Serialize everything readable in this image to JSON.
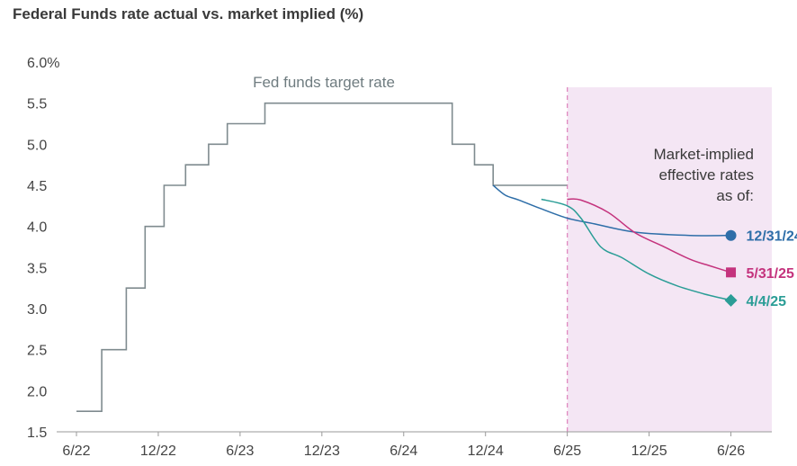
{
  "chart_data": {
    "type": "line",
    "title": "Federal Funds rate actual vs. market implied (%)",
    "xlabel": "",
    "ylabel": "",
    "ylim": [
      1.5,
      6.0
    ],
    "xlim": [
      "2022-06",
      "2026-09"
    ],
    "y_ticks": [
      "1.5",
      "2.0",
      "2.5",
      "3.0",
      "3.5",
      "4.0",
      "4.5",
      "5.0",
      "5.5",
      "6.0%"
    ],
    "x_ticks": [
      {
        "label": "6/22",
        "date": "2022-06"
      },
      {
        "label": "12/22",
        "date": "2022-12"
      },
      {
        "label": "6/23",
        "date": "2023-06"
      },
      {
        "label": "12/23",
        "date": "2023-12"
      },
      {
        "label": "6/24",
        "date": "2024-06"
      },
      {
        "label": "12/24",
        "date": "2024-12"
      },
      {
        "label": "6/25",
        "date": "2025-06"
      },
      {
        "label": "12/25",
        "date": "2025-12"
      },
      {
        "label": "6/26",
        "date": "2026-06"
      }
    ],
    "grid": false,
    "shaded_region": {
      "from": "2025-06",
      "to": "2026-09",
      "color": "#f4e6f4"
    },
    "divider_at": "2025-06",
    "annotation_target": "Fed funds target rate",
    "annotation_market": [
      "Market-implied",
      "effective rates",
      "as of:"
    ],
    "series": [
      {
        "name": "Fed funds target rate",
        "color": "#7f8b8f",
        "style": "step",
        "x": [
          "2022-06-01",
          "2022-06-15",
          "2022-07-27",
          "2022-09-21",
          "2022-11-02",
          "2022-12-14",
          "2023-02-01",
          "2023-03-22",
          "2023-05-03",
          "2023-07-26",
          "2024-09-18",
          "2024-11-07",
          "2024-12-18",
          "2025-05-31"
        ],
        "y": [
          1.75,
          1.75,
          2.5,
          3.25,
          4.0,
          4.5,
          4.75,
          5.0,
          5.25,
          5.5,
          5.0,
          4.75,
          4.5,
          4.5
        ]
      },
      {
        "name": "12/31/24",
        "color": "#2e6ea8",
        "marker": "circle",
        "x": [
          "2024-12-18",
          "2025-01-15",
          "2025-02-15",
          "2025-04-01",
          "2025-06-01",
          "2025-08-01",
          "2025-11-01",
          "2026-03-01",
          "2026-06-01"
        ],
        "y": [
          4.5,
          4.38,
          4.32,
          4.22,
          4.1,
          4.03,
          3.93,
          3.89,
          3.89
        ]
      },
      {
        "name": "5/31/25",
        "color": "#c4337d",
        "marker": "square",
        "x": [
          "2025-05-31",
          "2025-07-01",
          "2025-09-01",
          "2025-11-01",
          "2026-01-01",
          "2026-03-01",
          "2026-04-15",
          "2026-06-01"
        ],
        "y": [
          4.33,
          4.32,
          4.17,
          3.92,
          3.76,
          3.6,
          3.52,
          3.44
        ]
      },
      {
        "name": "4/4/25",
        "color": "#2a9d96",
        "marker": "diamond",
        "x": [
          "2025-04-04",
          "2025-06-01",
          "2025-07-01",
          "2025-08-15",
          "2025-10-01",
          "2025-12-01",
          "2026-02-01",
          "2026-04-01",
          "2026-06-01"
        ],
        "y": [
          4.33,
          4.25,
          4.1,
          3.75,
          3.62,
          3.42,
          3.28,
          3.18,
          3.1
        ]
      }
    ]
  }
}
